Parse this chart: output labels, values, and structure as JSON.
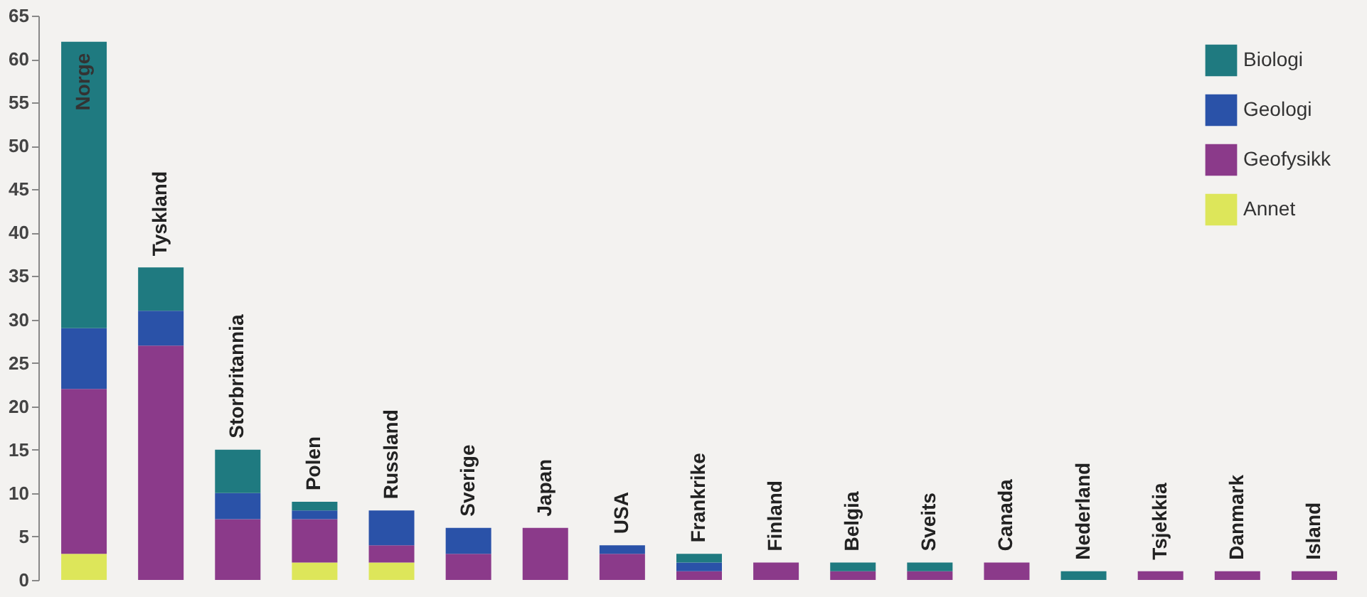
{
  "chart_data": {
    "type": "bar",
    "stacked": true,
    "categories": [
      "Norge",
      "Tyskland",
      "Storbritannia",
      "Polen",
      "Russland",
      "Sverige",
      "Japan",
      "USA",
      "Frankrike",
      "Finland",
      "Belgia",
      "Sveits",
      "Canada",
      "Nederland",
      "Tsjekkia",
      "Danmark",
      "Island"
    ],
    "series": [
      {
        "name": "Annet",
        "color": "#dde65a",
        "values": [
          3,
          null,
          null,
          2,
          2,
          null,
          null,
          null,
          null,
          null,
          null,
          null,
          null,
          null,
          null,
          null,
          null
        ]
      },
      {
        "name": "Geofysikk",
        "color": "#8b3a8a",
        "values": [
          19,
          27,
          7,
          5,
          2,
          3,
          6,
          3,
          1,
          2,
          1,
          1,
          2,
          null,
          1,
          1,
          1
        ]
      },
      {
        "name": "Geologi",
        "color": "#2a52a8",
        "values": [
          7,
          4,
          3,
          1,
          4,
          3,
          null,
          1,
          1,
          null,
          null,
          null,
          null,
          null,
          null,
          null,
          null
        ]
      },
      {
        "name": "Biologi",
        "color": "#1f7a80",
        "values": [
          33,
          5,
          5,
          1,
          null,
          null,
          null,
          null,
          1,
          null,
          1,
          1,
          null,
          1,
          null,
          null,
          null
        ]
      }
    ],
    "ylim": [
      0,
      65
    ],
    "yticks": [
      0,
      5,
      10,
      15,
      20,
      25,
      30,
      35,
      40,
      45,
      50,
      55,
      60,
      65
    ],
    "grid": false,
    "legend": "top right"
  }
}
